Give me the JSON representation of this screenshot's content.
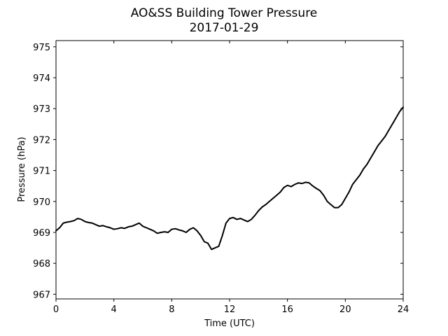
{
  "chart_data": {
    "type": "line",
    "title": "AO&SS Building Tower Pressure",
    "subtitle": "2017-01-29",
    "xlabel": "Time (UTC)",
    "ylabel": "Pressure (hPa)",
    "xlim": [
      0,
      24
    ],
    "ylim": [
      966.85,
      975.2
    ],
    "x_ticks": [
      0,
      4,
      8,
      12,
      16,
      20,
      24
    ],
    "y_ticks": [
      967,
      968,
      969,
      970,
      971,
      972,
      973,
      974,
      975
    ],
    "grid": false,
    "legend": "none",
    "colors": {
      "line": "#000000",
      "axes": "#000000",
      "background": "#ffffff"
    },
    "series": [
      {
        "x": [
          0,
          0.25,
          0.5,
          0.75,
          1.0,
          1.25,
          1.5,
          1.75,
          2.0,
          2.25,
          2.5,
          2.75,
          3.0,
          3.25,
          3.5,
          3.75,
          4.0,
          4.25,
          4.5,
          4.75,
          5.0,
          5.25,
          5.5,
          5.75,
          6.0,
          6.25,
          6.5,
          6.75,
          7.0,
          7.25,
          7.5,
          7.75,
          8.0,
          8.25,
          8.5,
          8.75,
          9.0,
          9.25,
          9.5,
          9.75,
          10.0,
          10.25,
          10.5,
          10.75,
          11.0,
          11.25,
          11.5,
          11.75,
          12.0,
          12.25,
          12.5,
          12.75,
          13.0,
          13.25,
          13.5,
          13.75,
          14.0,
          14.25,
          14.5,
          14.75,
          15.0,
          15.25,
          15.5,
          15.75,
          16.0,
          16.25,
          16.5,
          16.75,
          17.0,
          17.25,
          17.5,
          17.75,
          18.0,
          18.25,
          18.5,
          18.75,
          19.0,
          19.25,
          19.5,
          19.75,
          20.0,
          20.25,
          20.5,
          20.75,
          21.0,
          21.25,
          21.5,
          21.75,
          22.0,
          22.25,
          22.5,
          22.75,
          23.0,
          23.25,
          23.5,
          23.75,
          24.0
        ],
        "values": [
          969.05,
          969.15,
          969.3,
          969.33,
          969.35,
          969.38,
          969.45,
          969.42,
          969.35,
          969.32,
          969.3,
          969.25,
          969.2,
          969.22,
          969.18,
          969.15,
          969.1,
          969.12,
          969.15,
          969.13,
          969.18,
          969.2,
          969.25,
          969.3,
          969.2,
          969.15,
          969.1,
          969.05,
          968.97,
          969.0,
          969.02,
          969.0,
          969.1,
          969.12,
          969.08,
          969.05,
          969.0,
          969.1,
          969.15,
          969.05,
          968.9,
          968.7,
          968.65,
          968.45,
          968.5,
          968.55,
          968.9,
          969.3,
          969.45,
          969.48,
          969.42,
          969.45,
          969.4,
          969.35,
          969.42,
          969.55,
          969.7,
          969.82,
          969.9,
          970.0,
          970.1,
          970.2,
          970.3,
          970.45,
          970.52,
          970.48,
          970.55,
          970.6,
          970.58,
          970.62,
          970.6,
          970.5,
          970.42,
          970.35,
          970.2,
          970.0,
          969.9,
          969.8,
          969.8,
          969.9,
          970.1,
          970.3,
          970.55,
          970.7,
          970.85,
          971.05,
          971.2,
          971.4,
          971.6,
          971.8,
          971.95,
          972.1,
          972.3,
          972.5,
          972.7,
          972.9,
          973.05
        ]
      }
    ]
  }
}
